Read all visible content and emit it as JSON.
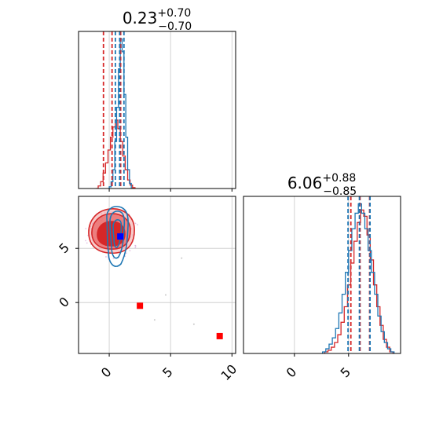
{
  "chart_data": {
    "type": "corner",
    "parameters": 2,
    "colors": {
      "series_a": "#d62728",
      "series_b": "#1f77b4",
      "marker_red": "#ff0000",
      "marker_blue": "#0000ff",
      "grid": "#c8c8c8"
    },
    "panels": [
      {
        "id": "hist-param-1",
        "type": "histogram",
        "title": {
          "value": "0.23",
          "plus": "+0.70",
          "minus": "−0.70"
        },
        "xlim": [
          -2.5,
          10.3
        ],
        "grid": true,
        "series": [
          {
            "color": "red",
            "bins_x": [
              -1.1,
              -0.9,
              -0.7,
              -0.5,
              -0.3,
              -0.1,
              0.1,
              0.3,
              0.5,
              0.7,
              0.9,
              1.1,
              1.3,
              1.5,
              1.7,
              1.9,
              2.1
            ],
            "counts": [
              0,
              3,
              8,
              18,
              30,
              45,
              60,
              72,
              80,
              70,
              55,
              38,
              22,
              10,
              4,
              1
            ],
            "quantile_lines": [
              -0.47,
              0.23,
              0.93
            ]
          },
          {
            "color": "blue",
            "bins_x": [
              0.0,
              0.15,
              0.3,
              0.45,
              0.6,
              0.75,
              0.9,
              1.05,
              1.2,
              1.35,
              1.5,
              1.65,
              1.8
            ],
            "counts": [
              2,
              8,
              22,
              55,
              95,
              140,
              175,
              160,
              110,
              60,
              22,
              6
            ],
            "quantile_lines": [
              0.5,
              0.85,
              1.2
            ]
          }
        ]
      },
      {
        "id": "contour-param-1-2",
        "type": "scatter-contour",
        "xlim": [
          -2.5,
          10.3
        ],
        "ylim": [
          -4.7,
          9.8
        ],
        "xticks": [
          "0",
          "5",
          "10"
        ],
        "yticks": [
          "0",
          "5"
        ],
        "grid": true,
        "red_contour_center": [
          0.3,
          6.1
        ],
        "blue_contour_center": [
          0.8,
          6.1
        ],
        "outlier_points": [
          [
            5.9,
            4.1
          ],
          [
            4.6,
            0.7
          ],
          [
            6.9,
            -2.0
          ],
          [
            3.7,
            -1.6
          ]
        ],
        "markers": [
          {
            "color": "red",
            "x": 2.5,
            "y": -0.3
          },
          {
            "color": "red",
            "x": 9.0,
            "y": -3.1
          },
          {
            "color": "blue",
            "x": 0.9,
            "y": 6.1
          }
        ]
      },
      {
        "id": "hist-param-2",
        "type": "histogram",
        "title": {
          "value": "6.06",
          "plus": "+0.88",
          "minus": "−0.85"
        },
        "xlim": [
          -4.7,
          9.8
        ],
        "xticks": [
          "0",
          "5"
        ],
        "grid": true,
        "series": [
          {
            "color": "red",
            "bins_x": [
              2.8,
              3.1,
              3.4,
              3.7,
              4.0,
              4.3,
              4.6,
              4.9,
              5.2,
              5.5,
              5.8,
              6.1,
              6.4,
              6.7,
              7.0,
              7.3,
              7.6,
              7.9,
              8.2,
              8.5,
              8.8,
              9.1
            ],
            "counts": [
              1,
              2,
              4,
              7,
              12,
              20,
              30,
              44,
              58,
              72,
              84,
              92,
              88,
              76,
              60,
              44,
              30,
              18,
              9,
              4,
              1
            ],
            "quantile_lines": [
              5.21,
              6.06,
              6.94
            ]
          },
          {
            "color": "blue",
            "bins_x": [
              2.6,
              2.9,
              3.2,
              3.5,
              3.8,
              4.1,
              4.4,
              4.7,
              5.0,
              5.3,
              5.6,
              5.9,
              6.2,
              6.5,
              6.8,
              7.1,
              7.4,
              7.7,
              8.0,
              8.3,
              8.6,
              8.9,
              9.2
            ],
            "counts": [
              1,
              3,
              6,
              10,
              16,
              26,
              38,
              52,
              66,
              80,
              90,
              96,
              90,
              80,
              66,
              52,
              38,
              24,
              14,
              7,
              3,
              1
            ],
            "quantile_lines": [
              4.95,
              6.0,
              6.98
            ]
          }
        ]
      }
    ]
  }
}
